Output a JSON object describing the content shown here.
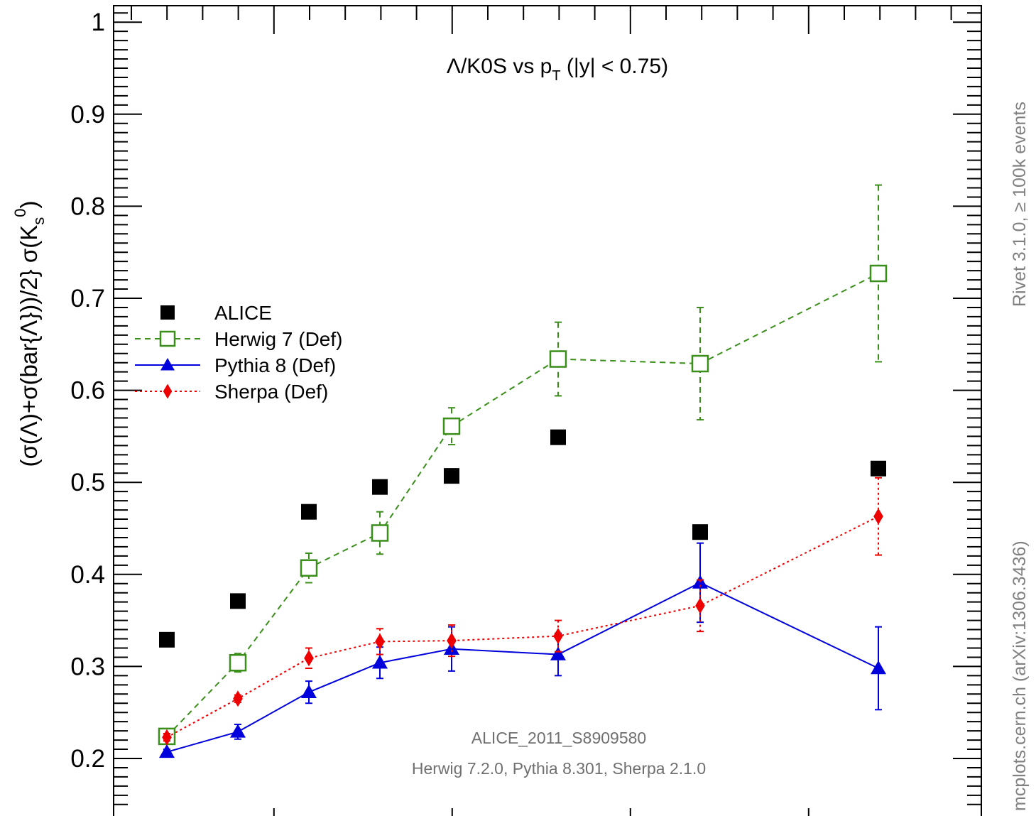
{
  "chart_data": {
    "type": "scatter",
    "title": "",
    "subtitle": "Λ/K0S vs p_T (|y| < 0.75)",
    "title_parts": {
      "main": "Λ/K0S vs p",
      "sub": "T",
      "rest": " (|y| < 0.75)"
    },
    "ylabel": "(σ(Λ)+σ(bar{Λ}))/2} σ(K_s^0)",
    "ylabel_parts": {
      "main": "(σ(Λ)+σ(bar{Λ}))/2} σ(K",
      "sub": "s",
      "sup": "0",
      "close": ")"
    },
    "xlabel": "",
    "ylim": [
      0.15,
      1.01
    ],
    "y_ticks": [
      0.2,
      0.3,
      0.4,
      0.5,
      0.6,
      0.7,
      0.8,
      0.9,
      1.0
    ],
    "y_tick_labels": [
      "0.2",
      "0.3",
      "0.4",
      "0.5",
      "0.6",
      "0.7",
      "0.8",
      "0.9",
      "1"
    ],
    "legend_position": "center-left",
    "grid": false,
    "series": [
      {
        "name": "ALICE",
        "marker": "filled-square",
        "line": "none",
        "color": "#000000",
        "values": [
          0.329,
          0.371,
          0.468,
          0.495,
          0.507,
          0.549,
          0.446,
          0.515
        ],
        "err": [
          0,
          0,
          0,
          0,
          0,
          0,
          0,
          0
        ]
      },
      {
        "name": "Herwig 7 (Def)",
        "marker": "open-square",
        "line": "dashed",
        "color": "#3a8e1a",
        "values": [
          0.224,
          0.304,
          0.407,
          0.445,
          0.561,
          0.634,
          0.629,
          0.727
        ],
        "err": [
          0.007,
          0.01,
          0.016,
          0.023,
          0.02,
          0.04,
          0.061,
          0.096
        ]
      },
      {
        "name": "Pythia 8 (Def)",
        "marker": "filled-triangle",
        "line": "solid",
        "color": "#0000dd",
        "values": [
          0.207,
          0.229,
          0.272,
          0.304,
          0.319,
          0.313,
          0.391,
          0.298
        ],
        "err": [
          0.003,
          0.008,
          0.012,
          0.017,
          0.024,
          0.023,
          0.043,
          0.045
        ]
      },
      {
        "name": "Sherpa (Def)",
        "marker": "filled-diamond",
        "line": "dotted",
        "color": "#ee0000",
        "values": [
          0.223,
          0.265,
          0.309,
          0.327,
          0.328,
          0.333,
          0.366,
          0.463
        ],
        "err": [
          0.004,
          0.004,
          0.011,
          0.014,
          0.017,
          0.017,
          0.028,
          0.042
        ]
      }
    ]
  },
  "annotations": {
    "analysis_id": "ALICE_2011_S8909580",
    "generators": "Herwig 7.2.0, Pythia 8.301, Sherpa 2.1.0"
  },
  "side_labels": {
    "rivet": "Rivet 3.1.0, ≥ 100k events",
    "mcplots": "mcplots.cern.ch (arXiv:1306.3436)"
  }
}
